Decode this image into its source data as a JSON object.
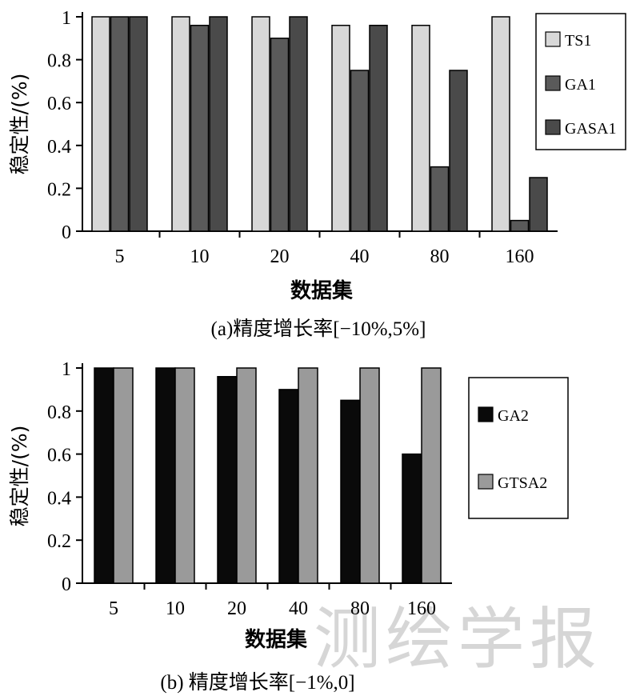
{
  "watermark": "测绘学报",
  "chart_data": [
    {
      "type": "bar",
      "caption": "(a)精度增长率[−10%,5%]",
      "xlabel": "数据集",
      "ylabel": "稳定性/(%)",
      "categories": [
        "5",
        "10",
        "20",
        "40",
        "80",
        "160"
      ],
      "ylim": [
        0,
        1
      ],
      "yticks": [
        "0",
        "0.2",
        "0.4",
        "0.6",
        "0.8",
        "1"
      ],
      "legend_position": "right",
      "series": [
        {
          "name": "TS1",
          "color": "#d8d8d8",
          "values": [
            1,
            1,
            1,
            0.96,
            0.96,
            1
          ]
        },
        {
          "name": "GA1",
          "color": "#5a5a5a",
          "values": [
            1,
            0.96,
            0.9,
            0.75,
            0.3,
            0.05
          ]
        },
        {
          "name": "GASA1",
          "color": "#4a4a4a",
          "values": [
            1,
            1,
            1,
            0.96,
            0.75,
            0.25
          ]
        }
      ]
    },
    {
      "type": "bar",
      "caption": "(b) 精度增长率[−1%,0]",
      "xlabel": "数据集",
      "ylabel": "稳定性/(%)",
      "categories": [
        "5",
        "10",
        "20",
        "40",
        "80",
        "160"
      ],
      "ylim": [
        0,
        1
      ],
      "yticks": [
        "0",
        "0.2",
        "0.4",
        "0.6",
        "0.8",
        "1"
      ],
      "legend_position": "right",
      "series": [
        {
          "name": "GA2",
          "color": "#0a0a0a",
          "values": [
            1,
            1,
            0.96,
            0.9,
            0.85,
            0.6
          ]
        },
        {
          "name": "GTSA2",
          "color": "#9a9a9a",
          "values": [
            1,
            1,
            1,
            1,
            1,
            1
          ]
        }
      ]
    }
  ]
}
